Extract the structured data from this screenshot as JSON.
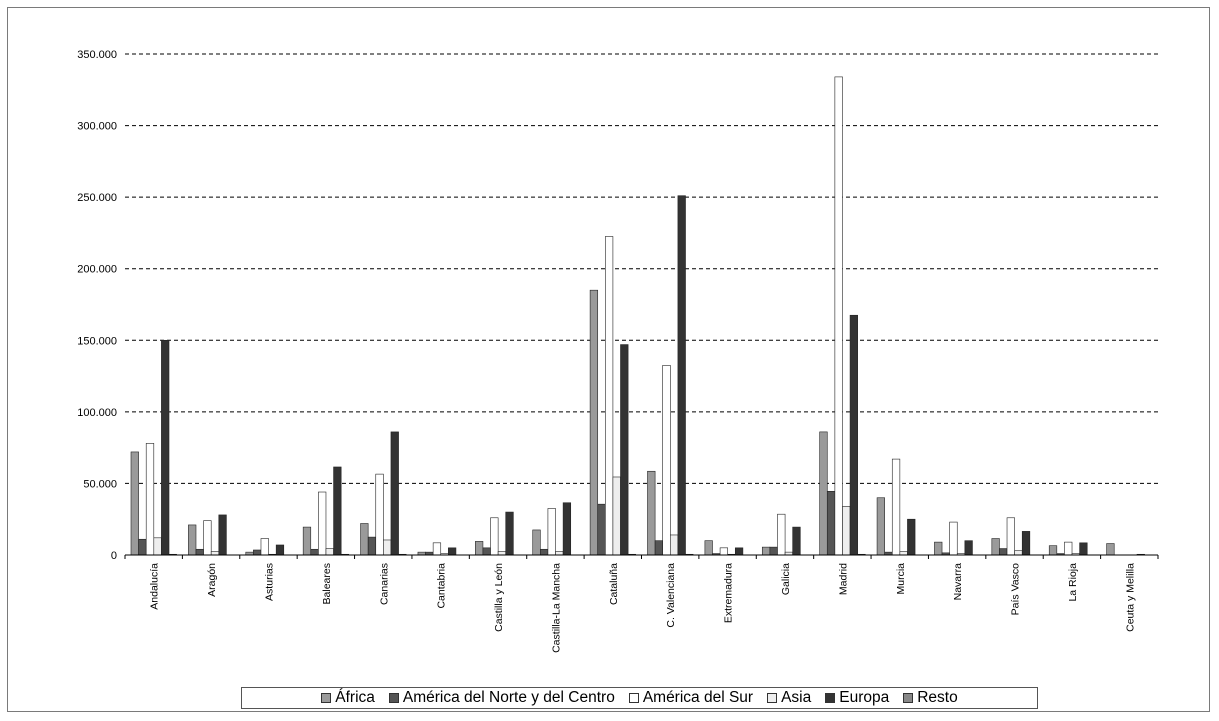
{
  "chart_data": {
    "type": "bar",
    "categories": [
      "Andalucía",
      "Aragón",
      "Asturias",
      "Baleares",
      "Canarias",
      "Cantabria",
      "Castilla y León",
      "Castilla-La Mancha",
      "Cataluña",
      "C. Valenciana",
      "Extremadura",
      "Galicia",
      "Madrid",
      "Murcia",
      "Navarra",
      "País Vasco",
      "La Rioja",
      "Ceuta y Melilla"
    ],
    "series": [
      {
        "name": "África",
        "color": "#9a9a9a",
        "values": [
          72000,
          21000,
          2000,
          19500,
          22000,
          2000,
          9500,
          17500,
          185000,
          58500,
          10000,
          5500,
          86000,
          40000,
          9000,
          11500,
          6500,
          8000
        ]
      },
      {
        "name": "América del Norte y del Centro",
        "color": "#555555",
        "values": [
          11000,
          4000,
          3500,
          4000,
          12500,
          2000,
          5000,
          4000,
          35500,
          10000,
          1000,
          5500,
          44500,
          2000,
          1500,
          4500,
          1000,
          0
        ]
      },
      {
        "name": "América del Sur",
        "color": "#ffffff",
        "values": [
          78000,
          24000,
          11500,
          44000,
          56500,
          8500,
          26000,
          32500,
          222500,
          132500,
          5000,
          28500,
          334000,
          67000,
          23000,
          26000,
          9000,
          0
        ]
      },
      {
        "name": "Asia",
        "color": "#eeeeee",
        "values": [
          12000,
          2500,
          500,
          4500,
          10500,
          1000,
          2500,
          2500,
          54500,
          14000,
          500,
          2000,
          34000,
          2500,
          1000,
          3000,
          1000,
          0
        ]
      },
      {
        "name": "Europa",
        "color": "#333333",
        "values": [
          150000,
          28000,
          7000,
          61500,
          86000,
          5000,
          30000,
          36500,
          147000,
          251000,
          5000,
          19500,
          167500,
          25000,
          10000,
          16500,
          8500,
          500
        ]
      },
      {
        "name": "Resto",
        "color": "#888888",
        "values": [
          500,
          0,
          0,
          500,
          500,
          0,
          0,
          0,
          500,
          500,
          0,
          0,
          500,
          0,
          0,
          0,
          0,
          0
        ]
      }
    ],
    "ylim": [
      0,
      350000
    ],
    "yticks": [
      0,
      50000,
      100000,
      150000,
      200000,
      250000,
      300000,
      350000
    ],
    "ytick_labels": [
      "0",
      "50.000",
      "100.000",
      "150.000",
      "200.000",
      "250.000",
      "300.000",
      "350.000"
    ],
    "grid": "horizontal-dashed",
    "legend_position": "bottom"
  }
}
